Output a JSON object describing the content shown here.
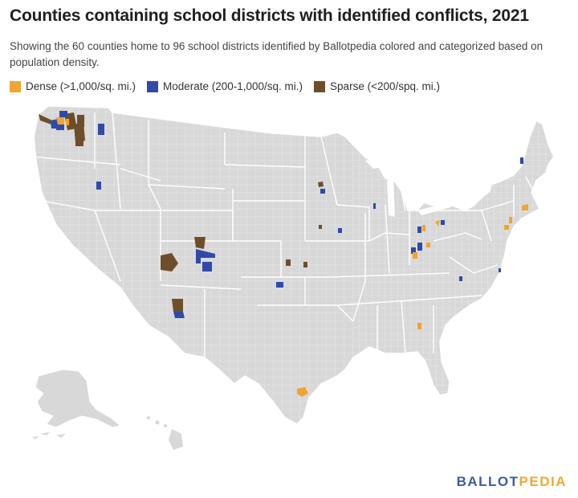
{
  "title": "Counties containing school districts with identified conflicts, 2021",
  "subtitle": "Showing the 60 counties home to 96 school districts identified by Ballotpedia colored and categorized based on population density.",
  "legend": [
    {
      "label": "Dense (>1,000/sq. mi.)",
      "color": "#f0a530"
    },
    {
      "label": "Moderate (200-1,000/sq. mi.)",
      "color": "#2f4aa8"
    },
    {
      "label": "Sparse (<200/spq. mi.)",
      "color": "#6e4e2a"
    }
  ],
  "colors": {
    "land": "#d8d8d8",
    "county_border": "#f2f2f2",
    "state_border": "#ffffff",
    "background": "#ffffff"
  },
  "logo": {
    "part1": "BALLOT",
    "part2": "PEDIA"
  }
}
